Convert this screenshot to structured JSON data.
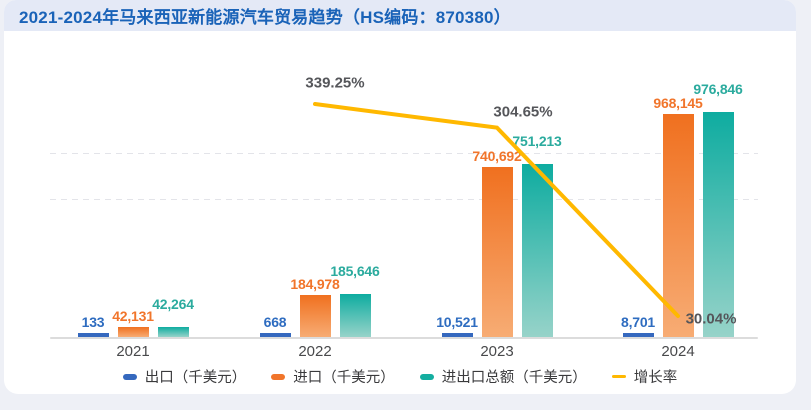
{
  "page": {
    "title": "2021-2024年马来西亚新能源汽车贸易趋势（HS编码：870380）"
  },
  "chart_data": {
    "type": "bar",
    "title": "2021-2024年马来西亚新能源汽车贸易趋势（HS编码：870380）",
    "categories": [
      "2021",
      "2022",
      "2023",
      "2024"
    ],
    "series": [
      {
        "name": "出口（千美元）",
        "type": "bar",
        "key": "export",
        "color": "#3568be",
        "gradient": [
          "#3568be",
          "#3568be"
        ],
        "label_color": "#2e6cc0",
        "values": [
          133,
          668,
          10521,
          8701
        ],
        "value_labels": [
          "133",
          "668",
          "10,521",
          "8,701"
        ]
      },
      {
        "name": "进口（千美元）",
        "type": "bar",
        "key": "import",
        "color": "#f1752b",
        "gradient": [
          "#f0701f",
          "#f7ac74"
        ],
        "label_color": "#f1752b",
        "values": [
          42131,
          184978,
          740692,
          968145
        ],
        "value_labels": [
          "42,131",
          "184,978",
          "740,692",
          "968,145"
        ]
      },
      {
        "name": "进出口总额（千美元）",
        "type": "bar",
        "key": "total",
        "color": "#14aea0",
        "gradient": [
          "#0eaca0",
          "#97d3c9"
        ],
        "label_color": "#2bab9e",
        "values": [
          42264,
          185646,
          751213,
          976846
        ],
        "value_labels": [
          "42,264",
          "185,646",
          "751,213",
          "976,846"
        ]
      },
      {
        "name": "增长率",
        "type": "line",
        "key": "growth",
        "color": "#ffb800",
        "label_color": "#55565a",
        "values": [
          null,
          339.25,
          304.65,
          30.04
        ],
        "value_labels": [
          null,
          "339.25%",
          "304.65%",
          "30.04%"
        ]
      }
    ],
    "ylim": [
      0,
      1000000
    ],
    "xlabel": "",
    "ylabel": "",
    "grid": "horizontal dashed at 600000 and 800000",
    "legend_position": "bottom"
  }
}
